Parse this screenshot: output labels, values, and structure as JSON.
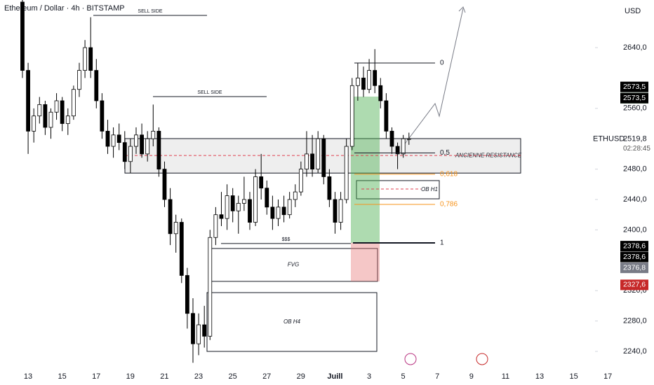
{
  "chart_data": {
    "type": "candlestick",
    "title": "Ethereum / Dollar · 4h · BITSTAMP",
    "currency": "USD",
    "symbol": "ETHUSD",
    "countdown": "02:28:45",
    "up_color": "#ffffff",
    "down_color": "#000000",
    "ylim": [
      2223.4,
      2702.7
    ],
    "yticks": [
      {
        "value": 2640,
        "label": "2640,0"
      },
      {
        "value": 2560,
        "label": "2560,0"
      },
      {
        "value": 2480,
        "label": "2480,0"
      },
      {
        "value": 2440,
        "label": "2440,0"
      },
      {
        "value": 2400,
        "label": "2400,0"
      },
      {
        "value": 2320,
        "label": "2320,0"
      },
      {
        "value": 2280,
        "label": "2280,0"
      },
      {
        "value": 2240,
        "label": "2240,0"
      }
    ],
    "x_labels": [
      "13",
      "15",
      "17",
      "19",
      "21",
      "23",
      "25",
      "27",
      "29",
      "Juill",
      "3",
      "5",
      "7",
      "9",
      "11",
      "13",
      "15",
      "17"
    ],
    "open": [
      2700,
      2610,
      2530,
      2550,
      2565,
      2535,
      2555,
      2570,
      2540,
      2550,
      2585,
      2610,
      2640,
      2610,
      2570,
      2530,
      2510,
      2525,
      2515,
      2490,
      2510,
      2525,
      2500,
      2520,
      2530,
      2480,
      2440,
      2395,
      2410,
      2340,
      2290,
      2250,
      2275,
      2260,
      2390,
      2420,
      2415,
      2445,
      2425,
      2435,
      2440,
      2410,
      2470,
      2455,
      2430,
      2415,
      2430,
      2420,
      2440,
      2450,
      2480,
      2500,
      2480,
      2520,
      2470,
      2440,
      2410,
      2440,
      2510,
      2590,
      2600,
      2585,
      2610,
      2590,
      2570,
      2530,
      2510,
      2500,
      2520
    ],
    "high": [
      2703,
      2620,
      2560,
      2575,
      2570,
      2560,
      2580,
      2575,
      2560,
      2590,
      2620,
      2650,
      2680,
      2625,
      2580,
      2545,
      2535,
      2540,
      2530,
      2520,
      2535,
      2540,
      2530,
      2565,
      2535,
      2490,
      2455,
      2420,
      2415,
      2350,
      2310,
      2290,
      2300,
      2400,
      2430,
      2450,
      2460,
      2455,
      2445,
      2470,
      2450,
      2480,
      2500,
      2465,
      2445,
      2440,
      2445,
      2450,
      2460,
      2490,
      2530,
      2525,
      2530,
      2525,
      2480,
      2450,
      2450,
      2520,
      2600,
      2620,
      2615,
      2625,
      2638,
      2600,
      2580,
      2535,
      2515,
      2525,
      2528
    ],
    "low": [
      2600,
      2500,
      2515,
      2540,
      2525,
      2520,
      2545,
      2530,
      2525,
      2545,
      2575,
      2600,
      2600,
      2560,
      2520,
      2500,
      2495,
      2505,
      2480,
      2475,
      2500,
      2495,
      2490,
      2510,
      2470,
      2430,
      2380,
      2370,
      2330,
      2270,
      2225,
      2235,
      2245,
      2255,
      2380,
      2405,
      2400,
      2410,
      2395,
      2425,
      2400,
      2405,
      2440,
      2420,
      2400,
      2405,
      2410,
      2415,
      2430,
      2445,
      2470,
      2470,
      2475,
      2460,
      2430,
      2395,
      2400,
      2435,
      2505,
      2570,
      2575,
      2580,
      2580,
      2560,
      2520,
      2500,
      2480,
      2495,
      2512
    ],
    "close": [
      2610,
      2530,
      2550,
      2565,
      2535,
      2555,
      2570,
      2540,
      2550,
      2585,
      2610,
      2640,
      2610,
      2570,
      2530,
      2510,
      2525,
      2515,
      2490,
      2510,
      2525,
      2500,
      2520,
      2530,
      2480,
      2440,
      2395,
      2410,
      2340,
      2290,
      2250,
      2275,
      2260,
      2390,
      2420,
      2415,
      2445,
      2425,
      2435,
      2440,
      2410,
      2470,
      2455,
      2430,
      2415,
      2430,
      2420,
      2440,
      2450,
      2480,
      2500,
      2480,
      2520,
      2470,
      2440,
      2410,
      2440,
      2510,
      2590,
      2600,
      2585,
      2610,
      2590,
      2570,
      2530,
      2510,
      2500,
      2520,
      2520
    ],
    "zones": [
      {
        "label": "ANCIENNE RESISTANCE",
        "top": 2520.2,
        "bottom": 2474.8
      },
      {
        "label": "OB H1",
        "top": 2464.9,
        "bottom": 2440.9
      },
      {
        "label": "FVG",
        "top": 2375.5,
        "bottom": 2332.2
      },
      {
        "label": "OB H4",
        "top": 2317.4,
        "bottom": 2240
      }
    ],
    "levels": [
      {
        "label": "SELL SIDE",
        "price": 2682.4,
        "color": "#131722"
      },
      {
        "label": "SELL SIDE",
        "price": 2575.5,
        "color": "#131722"
      },
      {
        "label": "$$$",
        "price": 2382,
        "color": "#131722"
      },
      {
        "label": "0",
        "price": 2619.7,
        "color": "#131722"
      },
      {
        "label": "0,5",
        "price": 2501.3,
        "color": "#131722"
      },
      {
        "label": "0,618",
        "price": 2473.3,
        "color": "#f7931a"
      },
      {
        "label": "0,786",
        "price": 2433.5,
        "color": "#f7931a"
      },
      {
        "label": "1",
        "price": 2382.9,
        "color": "#131722"
      }
    ],
    "dashed_lines": [
      {
        "price": 2498,
        "color": "#e04050"
      },
      {
        "price": 2453.8,
        "color": "#e04050"
      }
    ],
    "position": {
      "target": 2575.5,
      "entry": 2382.9,
      "stop": 2332.2,
      "target_color": "rgba(76,175,80,0.45)",
      "stop_color": "rgba(229,115,115,0.4)"
    },
    "price_labels": [
      {
        "label": "2573,5",
        "value": 2573.5,
        "color": "#2e9e3f"
      },
      {
        "label": "2573,5",
        "value": 2573.5,
        "color": "#000000"
      },
      {
        "label": "2573,5",
        "value": 2573.5,
        "color": "#000000"
      },
      {
        "label": "2378,6",
        "value": 2378.6,
        "color": "#000000"
      },
      {
        "label": "2378,6",
        "value": 2378.6,
        "color": "#000000"
      },
      {
        "label": "2376,8",
        "value": 2376.8,
        "color": "#787b86"
      },
      {
        "label": "2327,6",
        "value": 2327.6,
        "color": "#c62828"
      }
    ],
    "last_price": {
      "value": 2519.8,
      "label": "2519,8"
    }
  }
}
